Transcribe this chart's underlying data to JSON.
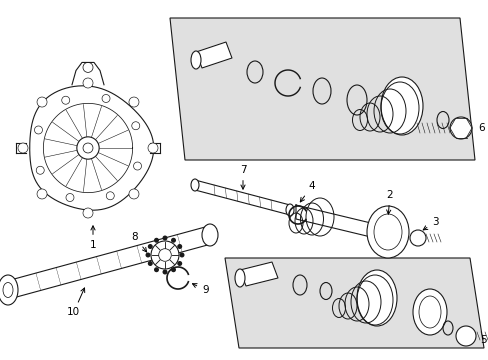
{
  "bg_color": "#ffffff",
  "line_color": "#1a1a1a",
  "box_fill": "#e0e0e0",
  "fig_width": 4.89,
  "fig_height": 3.6,
  "dpi": 100
}
